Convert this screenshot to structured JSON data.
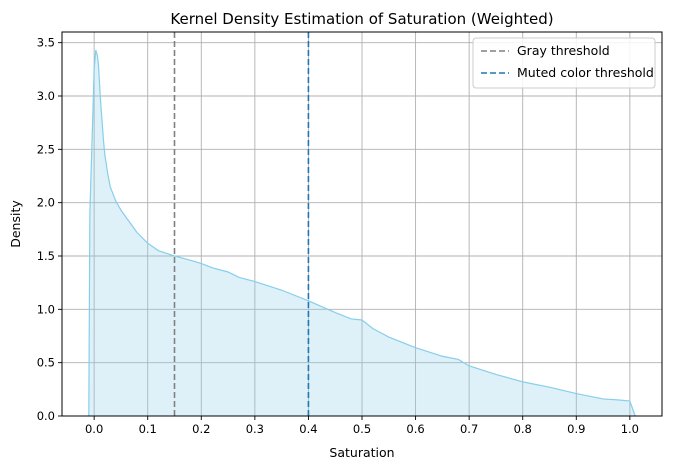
{
  "chart_data": {
    "type": "area",
    "title": "Kernel Density Estimation of Saturation (Weighted)",
    "xlabel": "Saturation",
    "ylabel": "Density",
    "xlim": [
      -0.06,
      1.06
    ],
    "ylim": [
      0,
      3.6
    ],
    "xticks": [
      "0.0",
      "0.1",
      "0.2",
      "0.3",
      "0.4",
      "0.5",
      "0.6",
      "0.7",
      "0.8",
      "0.9",
      "1.0"
    ],
    "yticks": [
      "0.0",
      "0.5",
      "1.0",
      "1.5",
      "2.0",
      "2.5",
      "3.0",
      "3.5"
    ],
    "xtick_values": [
      0,
      0.1,
      0.2,
      0.3,
      0.4,
      0.5,
      0.6,
      0.7,
      0.8,
      0.9,
      1.0
    ],
    "ytick_values": [
      0,
      0.5,
      1.0,
      1.5,
      2.0,
      2.5,
      3.0,
      3.5
    ],
    "grid": true,
    "legend_position": "top-right",
    "series": [
      {
        "kind": "density",
        "color": "#87ceeb",
        "x": [
          -0.01,
          -0.008,
          -0.005,
          -0.002,
          0.0,
          0.003,
          0.006,
          0.008,
          0.01,
          0.012,
          0.015,
          0.018,
          0.02,
          0.025,
          0.03,
          0.04,
          0.05,
          0.06,
          0.08,
          0.1,
          0.12,
          0.15,
          0.18,
          0.2,
          0.22,
          0.25,
          0.27,
          0.3,
          0.35,
          0.4,
          0.45,
          0.48,
          0.5,
          0.52,
          0.55,
          0.6,
          0.65,
          0.68,
          0.7,
          0.75,
          0.8,
          0.85,
          0.9,
          0.95,
          0.98,
          1.0,
          1.01
        ],
        "y": [
          0.0,
          1.9,
          2.4,
          2.9,
          3.25,
          3.43,
          3.38,
          3.3,
          3.12,
          2.95,
          2.75,
          2.55,
          2.45,
          2.28,
          2.15,
          2.02,
          1.93,
          1.86,
          1.72,
          1.62,
          1.55,
          1.5,
          1.46,
          1.43,
          1.39,
          1.35,
          1.3,
          1.26,
          1.18,
          1.08,
          0.97,
          0.91,
          0.9,
          0.82,
          0.74,
          0.64,
          0.56,
          0.53,
          0.47,
          0.39,
          0.32,
          0.27,
          0.21,
          0.16,
          0.15,
          0.14,
          0.0
        ]
      },
      {
        "name": "Gray threshold",
        "kind": "vline",
        "x": 0.15,
        "color": "#808080"
      },
      {
        "name": "Muted color threshold",
        "kind": "vline",
        "x": 0.4,
        "color": "#1f77b4"
      }
    ]
  }
}
